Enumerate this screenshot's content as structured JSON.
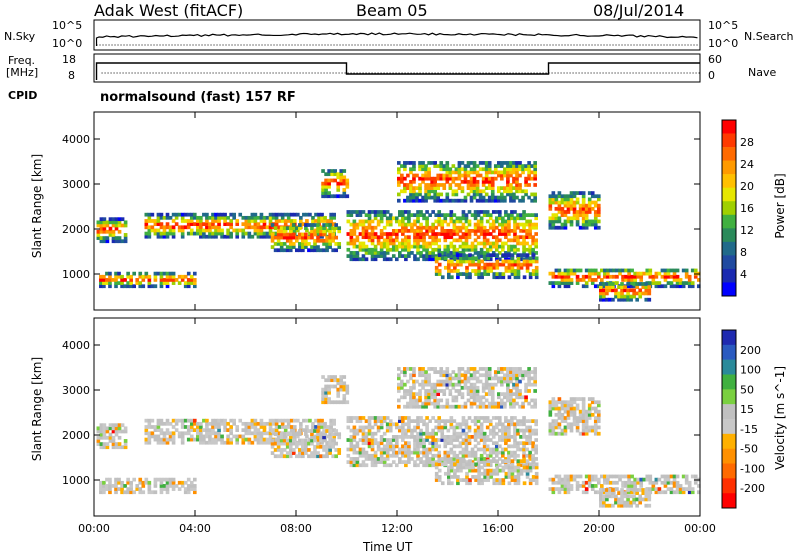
{
  "header": {
    "title": "Adak West (fitACF)",
    "beam": "Beam 05",
    "date": "08/Jul/2014"
  },
  "panels": {
    "nsky_label": "N.Sky",
    "nsearch_label": "N.Search",
    "freq_label_line1": "Freq.",
    "freq_label_line2": "[MHz]",
    "nave_label": "Nave",
    "cpid_label": "CPID",
    "cpid_text": "normalsound (fast) 157 RF",
    "noise_ticks_left": [
      "10^5",
      "10^0"
    ],
    "noise_ticks_right": [
      "10^5",
      "10^0"
    ],
    "freq_ticks_left": [
      "18",
      "8"
    ],
    "nave_ticks_right": [
      "60",
      "0"
    ]
  },
  "colorbars": {
    "power": {
      "label": "Power [dB]",
      "ticks": [
        "28",
        "24",
        "20",
        "16",
        "12",
        "8",
        "4"
      ],
      "colors": [
        "#ff0000",
        "#ff3a00",
        "#ff6a00",
        "#ff9a00",
        "#ffc000",
        "#e6e600",
        "#a0d000",
        "#40b040",
        "#2a8a5a",
        "#206a8a",
        "#204aa0",
        "#1a2ab0",
        "#0000ff"
      ]
    },
    "velocity": {
      "label": "Velocity [m s^-1]",
      "ticks": [
        "200",
        "100",
        "50",
        "15",
        "-15",
        "-50",
        "-100",
        "-200"
      ],
      "colors": [
        "#1f2ab0",
        "#2a5ac0",
        "#2a8a9a",
        "#40b040",
        "#7ad040",
        "#c0c0c0",
        "#c8c8c8",
        "#ffb000",
        "#ff9000",
        "#ff6a00",
        "#ff3000",
        "#ff0000"
      ]
    }
  },
  "chart_data": [
    {
      "type": "heatmap",
      "name": "power",
      "ylabel": "Slant Range [km]",
      "yticks": [
        1000,
        2000,
        3000,
        4000
      ],
      "ylim": [
        200,
        4600
      ],
      "xlim": [
        0,
        24
      ],
      "bands": [
        {
          "t0": 0.1,
          "t1": 1.2,
          "r0": 1700,
          "r1": 2200
        },
        {
          "t0": 0.2,
          "t1": 4.0,
          "r0": 700,
          "r1": 1000
        },
        {
          "t0": 2.0,
          "t1": 9.5,
          "r0": 1800,
          "r1": 2300
        },
        {
          "t0": 7.0,
          "t1": 9.7,
          "r0": 1500,
          "r1": 2100
        },
        {
          "t0": 9.0,
          "t1": 10.0,
          "r0": 2700,
          "r1": 3300
        },
        {
          "t0": 10.0,
          "t1": 17.5,
          "r0": 1300,
          "r1": 2400
        },
        {
          "t0": 12.0,
          "t1": 17.5,
          "r0": 2600,
          "r1": 3500
        },
        {
          "t0": 13.5,
          "t1": 17.5,
          "r0": 900,
          "r1": 1400
        },
        {
          "t0": 18.0,
          "t1": 24.0,
          "r0": 700,
          "r1": 1100
        },
        {
          "t0": 20.0,
          "t1": 22.0,
          "r0": 400,
          "r1": 800
        },
        {
          "t0": 18.0,
          "t1": 20.0,
          "r0": 2000,
          "r1": 2800
        }
      ]
    },
    {
      "type": "heatmap",
      "name": "velocity",
      "ylabel": "Slant Range [km]",
      "yticks": [
        1000,
        2000,
        3000,
        4000
      ],
      "ylim": [
        200,
        4600
      ],
      "xlim": [
        0,
        24
      ],
      "xticks": [
        "00:00",
        "04:00",
        "08:00",
        "12:00",
        "16:00",
        "20:00",
        "00:00"
      ],
      "xlabel": "Time UT"
    }
  ]
}
